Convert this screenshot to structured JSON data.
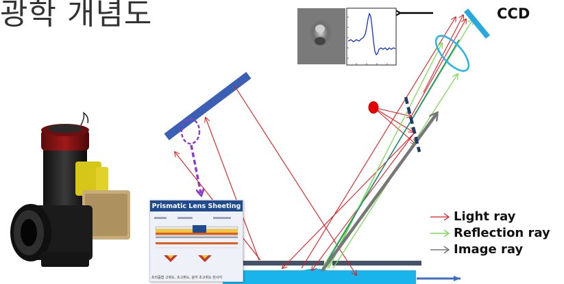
{
  "header": {
    "title_fragment": "광학 개념도"
  },
  "ccd": {
    "label": "CCD"
  },
  "legend": {
    "items": [
      {
        "label": "Light  ray",
        "color": "#e31a1c"
      },
      {
        "label": "Reflection ray",
        "color": "#7ed957"
      },
      {
        "label": "Image ray",
        "color": "#777777"
      }
    ]
  },
  "sample_card": {
    "title": "Prismatic Lens Sheeting",
    "footer": "프리즘형 고휘도, 초고휘도, 광각 초고휘도 반사지"
  },
  "colors": {
    "light": "#e31a1c",
    "reflection": "#7ed957",
    "image": "#777777",
    "mirror": "#3b5fb5",
    "ccd": "#29a8e0",
    "lens": "#29b5e8",
    "stage": "#1ab4ec",
    "annotation": "#8b3fc9"
  }
}
